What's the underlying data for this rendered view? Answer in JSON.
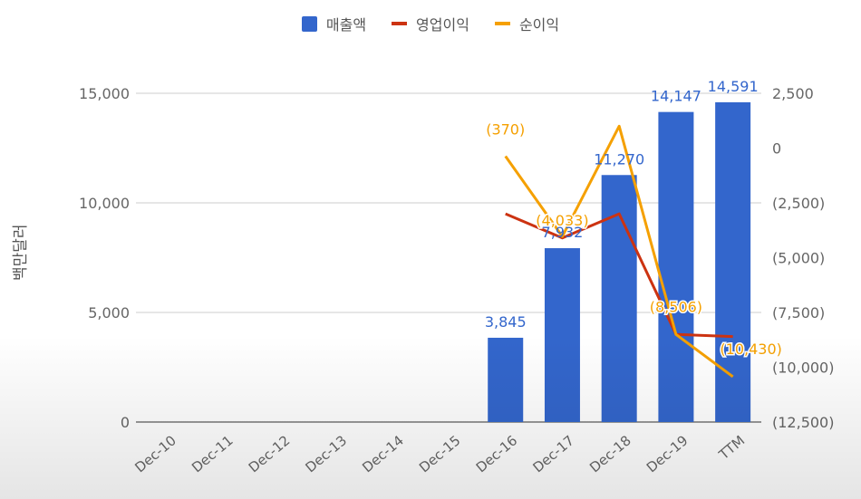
{
  "chart_data": {
    "type": "bar",
    "categories": [
      "Dec-10",
      "Dec-11",
      "Dec-12",
      "Dec-13",
      "Dec-14",
      "Dec-15",
      "Dec-16",
      "Dec-17",
      "Dec-18",
      "Dec-19",
      "TTM"
    ],
    "series": [
      {
        "name": "매출액",
        "type": "bar",
        "axis": "left",
        "color": "#3366cc",
        "values": [
          null,
          null,
          null,
          null,
          null,
          null,
          3845,
          7932,
          11270,
          14147,
          14591
        ],
        "labels": [
          "",
          "",
          "",
          "",
          "",
          "",
          "3,845",
          "7,932",
          "11,270",
          "14,147",
          "14,591"
        ]
      },
      {
        "name": "영업이익",
        "type": "line",
        "axis": "right",
        "color": "#cc3311",
        "values": [
          null,
          null,
          null,
          null,
          null,
          null,
          -3000,
          -4100,
          -3000,
          -8500,
          -8600
        ]
      },
      {
        "name": "순이익",
        "type": "line",
        "axis": "right",
        "color": "#f5a000",
        "values": [
          null,
          null,
          null,
          null,
          null,
          null,
          -370,
          -4033,
          1000,
          -8506,
          -10430
        ],
        "labels": [
          "",
          "",
          "",
          "",
          "",
          "",
          "(370)",
          "(4,033)",
          "",
          "(8,506)",
          "(10,430)"
        ]
      }
    ],
    "ylabel": "백만달러",
    "ylim_left": [
      0,
      15000
    ],
    "yticks_left": [
      "0",
      "5,000",
      "10,000",
      "15,000"
    ],
    "ylim_right": [
      -12500,
      2500
    ],
    "yticks_right": [
      "(12,500)",
      "(10,000)",
      "(7,500)",
      "(5,000)",
      "(2,500)",
      "0",
      "2,500"
    ],
    "grid": true,
    "legend_position": "top"
  }
}
